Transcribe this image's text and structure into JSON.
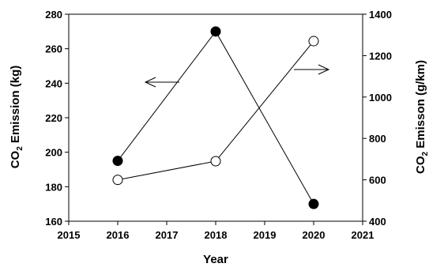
{
  "chart_data": {
    "type": "line",
    "xlabel": "Year",
    "ylabel_left": {
      "main": "CO",
      "sub": "2",
      "rest": " Emission (kg)"
    },
    "ylabel_right": {
      "main": "CO",
      "sub": "2",
      "rest": " Emisson (g/km)"
    },
    "xlim": [
      2015,
      2021
    ],
    "ylim_left": [
      160,
      280
    ],
    "ylim_right": [
      400,
      1400
    ],
    "x_ticks": [
      "2015",
      "2016",
      "2017",
      "2018",
      "2019",
      "2020",
      "2021"
    ],
    "y_left_ticks": [
      "160",
      "180",
      "200",
      "220",
      "240",
      "260",
      "280"
    ],
    "y_right_ticks": [
      "400",
      "600",
      "800",
      "1000",
      "1200",
      "1400"
    ],
    "grid": false,
    "series": [
      {
        "axis": "left",
        "marker": "filled-circle",
        "x": [
          2016,
          2018,
          2020
        ],
        "values": [
          195,
          270,
          170
        ]
      },
      {
        "axis": "right",
        "marker": "open-circle",
        "x": [
          2016,
          2018,
          2020
        ],
        "values": [
          600,
          690,
          1270
        ]
      }
    ]
  }
}
